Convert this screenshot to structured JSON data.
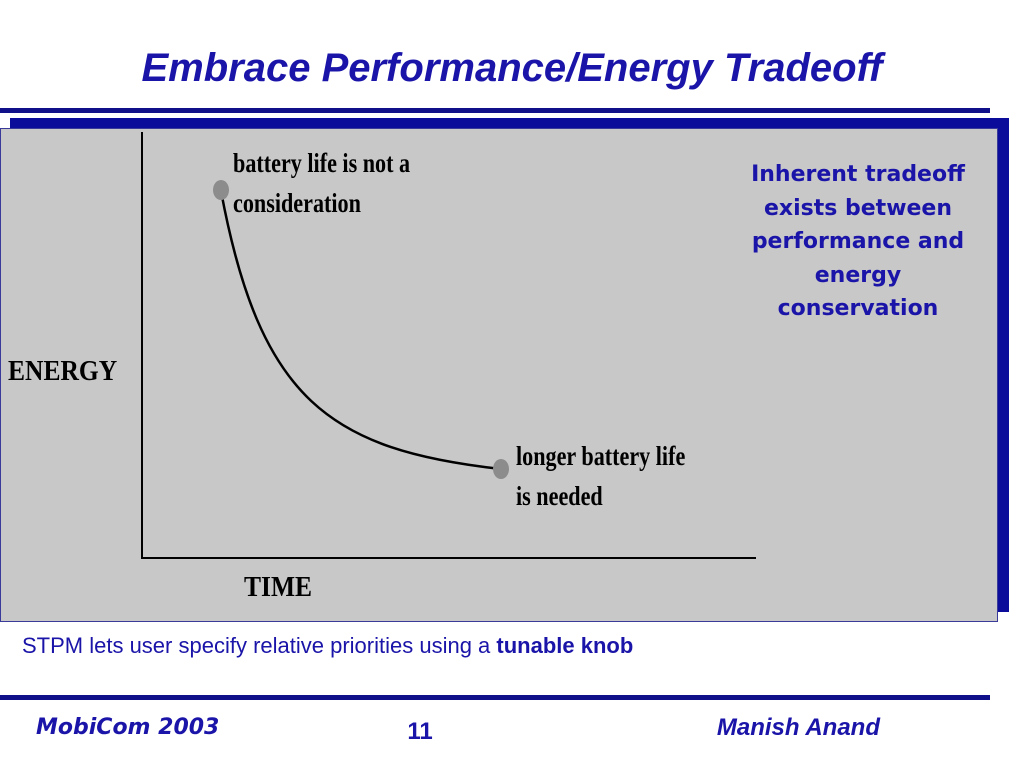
{
  "slide": {
    "title": "Embrace Performance/Energy Tradeoff"
  },
  "diagram": {
    "annotation_top": [
      "battery life is not a",
      "consideration"
    ],
    "annotation_bottom": [
      "longer battery life",
      "is needed"
    ],
    "y_axis_label": "ENERGY",
    "x_axis_label": "TIME",
    "curve_color": "#000000",
    "point_color": "#8c8c8c"
  },
  "side_note": {
    "lines": [
      "Inherent tradeoff",
      "exists between",
      "performance and",
      "energy",
      "conservation"
    ]
  },
  "caption": {
    "text": "STPM lets user specify relative priorities using a ",
    "emphasis": "tunable knob"
  },
  "footer": {
    "left": "MobiCom 2003",
    "page_number": "11",
    "right": "Manish Anand"
  },
  "theme": {
    "accent": "#1a14a8",
    "rule": "#10108a",
    "panel": "#c8c8c8",
    "panel_shadow": "#0c0c9a"
  }
}
